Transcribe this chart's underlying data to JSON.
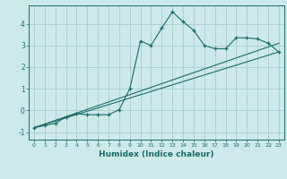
{
  "title": "",
  "xlabel": "Humidex (Indice chaleur)",
  "bg_color": "#cde9e9",
  "line_color": "#1a6b6b",
  "grid_color": "#aacccc",
  "xlim": [
    -0.5,
    23.5
  ],
  "ylim": [
    -1.35,
    4.85
  ],
  "x_ticks": [
    0,
    1,
    2,
    3,
    4,
    5,
    6,
    7,
    8,
    9,
    10,
    11,
    12,
    13,
    14,
    15,
    16,
    17,
    18,
    19,
    20,
    21,
    22,
    23
  ],
  "y_ticks": [
    -1,
    0,
    1,
    2,
    3,
    4
  ],
  "curve1_x": [
    0,
    1,
    2,
    3,
    4,
    5,
    6,
    7,
    8,
    9,
    10,
    11,
    12,
    13,
    14,
    15,
    16,
    17,
    18,
    19,
    20,
    21,
    22,
    23
  ],
  "curve1_y": [
    -0.8,
    -0.7,
    -0.6,
    -0.3,
    -0.15,
    -0.2,
    -0.2,
    -0.2,
    0.03,
    1.0,
    3.2,
    3.0,
    3.8,
    4.55,
    4.1,
    3.7,
    3.0,
    2.85,
    2.85,
    3.35,
    3.35,
    3.3,
    3.1,
    2.7
  ],
  "line1_x": [
    0,
    23
  ],
  "line1_y": [
    -0.8,
    2.7
  ],
  "line2_x": [
    0,
    23
  ],
  "line2_y": [
    -0.8,
    3.1
  ]
}
